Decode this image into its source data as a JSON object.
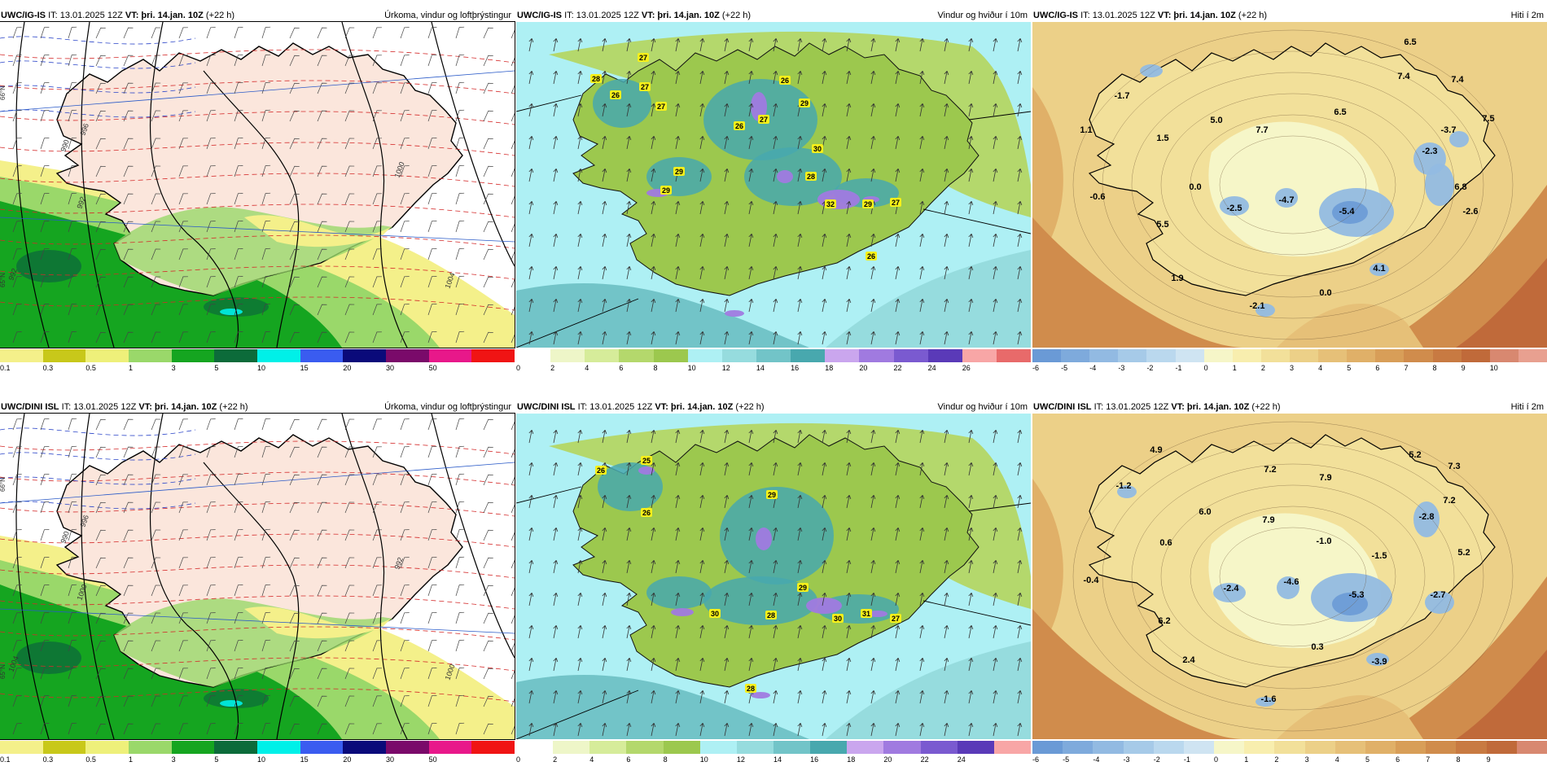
{
  "rows": [
    {
      "model": "UWC/IG-IS",
      "panels": [
        {
          "kind": "precip",
          "model": "UWC/IG-IS",
          "it_label": "IT: 13.01.2025 12Z",
          "vt_prefix": "VT:",
          "vt_value": "þri. 14.jan. 10Z",
          "offset": "(+22 h)",
          "title": "Úrkoma, vindur og loftþrýstingur",
          "colorbar_ticks": [
            "0.1",
            "0.3",
            "0.5",
            "1",
            "3",
            "5",
            "10",
            "15",
            "20",
            "30",
            "50"
          ],
          "colorbar_colors": [
            "#f4f08a",
            "#c8c81a",
            "#eef07a",
            "#9ad86a",
            "#15a520",
            "#0c6b3a",
            "#00f0e8",
            "#3a5cf0",
            "#0a0a7a",
            "#7a0a6a",
            "#e8188a",
            "#f01414"
          ],
          "isobar_labels": [
            "992",
            "996",
            "1000",
            "1004",
            "992",
            "990"
          ],
          "lat_labels": [
            "66°N",
            "65°N"
          ]
        },
        {
          "kind": "wind",
          "model": "UWC/IG-IS",
          "it_label": "IT: 13.01.2025 12Z",
          "vt_prefix": "VT:",
          "vt_value": "þri. 14.jan. 10Z",
          "offset": "(+22 h)",
          "title": "Vindur og hviður í 10m",
          "colorbar_ticks": [
            "0",
            "2",
            "4",
            "6",
            "8",
            "10",
            "12",
            "14",
            "16",
            "18",
            "20",
            "22",
            "24",
            "26"
          ],
          "colorbar_colors": [
            "#ffffff",
            "#eef6c8",
            "#d6ec9a",
            "#b4d86c",
            "#9cc84e",
            "#aef0f4",
            "#96dcde",
            "#72c4c8",
            "#48a8ae",
            "#caa6ee",
            "#a07ae0",
            "#7a5ad0",
            "#5a3ab8",
            "#f8a6a6",
            "#e86a6a"
          ],
          "gusts": [
            "28",
            "27",
            "27",
            "26",
            "27",
            "29",
            "26",
            "27",
            "29",
            "26",
            "30",
            "28",
            "32",
            "29",
            "29",
            "27",
            "26"
          ]
        },
        {
          "kind": "temp",
          "model": "UWC/IG-IS",
          "it_label": "IT: 13.01.2025 12Z",
          "vt_prefix": "VT:",
          "vt_value": "þri. 14.jan. 10Z",
          "offset": "(+22 h)",
          "title": "Hiti í 2m",
          "colorbar_ticks": [
            "-6",
            "-5",
            "-4",
            "-3",
            "-2",
            "-1",
            "0",
            "1",
            "2",
            "3",
            "4",
            "5",
            "6",
            "7",
            "8",
            "9",
            "10"
          ],
          "colorbar_colors": [
            "#6a9ad6",
            "#7eaadc",
            "#92bae2",
            "#a6cae8",
            "#bad8ee",
            "#cfe4f2",
            "#f6f6c8",
            "#f8eeae",
            "#f2e09a",
            "#ecd088",
            "#e6c078",
            "#e0b068",
            "#d89e58",
            "#d08c4c",
            "#c87a42",
            "#c06a3a",
            "#d88870",
            "#e8a090"
          ],
          "temps": [
            "6.5",
            "7.4",
            "7.4",
            "-1.7",
            "6.5",
            "7.5",
            "1.1",
            "5.0",
            "7.7",
            "-3.7",
            "1.5",
            "-2.3",
            "0.0",
            "6.8",
            "-0.6",
            "-4.7",
            "-2.5",
            "-5.4",
            "-2.6",
            "5.5",
            "4.1",
            "1.9",
            "0.0",
            "-2.1"
          ]
        }
      ]
    },
    {
      "model": "UWC/DINI ISL",
      "panels": [
        {
          "kind": "precip",
          "model": "UWC/DINI ISL",
          "it_label": "IT: 13.01.2025 12Z",
          "vt_prefix": "VT:",
          "vt_value": "þri. 14.jan. 10Z",
          "offset": "(+22 h)",
          "title": "Úrkoma, vindur og loftþrýstingur",
          "colorbar_ticks": [
            "0.1",
            "0.3",
            "0.5",
            "1",
            "3",
            "5",
            "10",
            "15",
            "20",
            "30",
            "50"
          ],
          "colorbar_colors": [
            "#f4f08a",
            "#c8c81a",
            "#eef07a",
            "#9ad86a",
            "#15a520",
            "#0c6b3a",
            "#00f0e8",
            "#3a5cf0",
            "#0a0a7a",
            "#7a0a6a",
            "#e8188a",
            "#f01414"
          ],
          "isobar_labels": [
            "1000",
            "996",
            "992",
            "1000",
            "1004",
            "990"
          ],
          "lat_labels": [
            "66°N",
            "65°N"
          ]
        },
        {
          "kind": "wind",
          "model": "UWC/DINI ISL",
          "it_label": "IT: 13.01.2025 12Z",
          "vt_prefix": "VT:",
          "vt_value": "þri. 14.jan. 10Z",
          "offset": "(+22 h)",
          "title": "Vindur og hviður í 10m",
          "colorbar_ticks": [
            "0",
            "2",
            "4",
            "6",
            "8",
            "10",
            "12",
            "14",
            "16",
            "18",
            "20",
            "22",
            "24"
          ],
          "colorbar_colors": [
            "#ffffff",
            "#eef6c8",
            "#d6ec9a",
            "#b4d86c",
            "#9cc84e",
            "#aef0f4",
            "#96dcde",
            "#72c4c8",
            "#48a8ae",
            "#caa6ee",
            "#a07ae0",
            "#7a5ad0",
            "#5a3ab8",
            "#f8a6a6"
          ],
          "gusts": [
            "26",
            "25",
            "26",
            "29",
            "29",
            "30",
            "28",
            "30",
            "31",
            "27",
            "28"
          ]
        },
        {
          "kind": "temp",
          "model": "UWC/DINI ISL",
          "it_label": "IT: 13.01.2025 12Z",
          "vt_prefix": "VT:",
          "vt_value": "þri. 14.jan. 10Z",
          "offset": "(+22 h)",
          "title": "Hiti í 2m",
          "colorbar_ticks": [
            "-6",
            "-5",
            "-4",
            "-3",
            "-2",
            "-1",
            "0",
            "1",
            "2",
            "3",
            "4",
            "5",
            "6",
            "7",
            "8",
            "9"
          ],
          "colorbar_colors": [
            "#6a9ad6",
            "#7eaadc",
            "#92bae2",
            "#a6cae8",
            "#bad8ee",
            "#cfe4f2",
            "#f6f6c8",
            "#f8eeae",
            "#f2e09a",
            "#ecd088",
            "#e6c078",
            "#e0b068",
            "#d89e58",
            "#d08c4c",
            "#c87a42",
            "#c06a3a",
            "#d88870"
          ],
          "temps": [
            "4.9",
            "5.2",
            "7.2",
            "7.3",
            "-1.2",
            "7.9",
            "7.2",
            "6.0",
            "7.9",
            "-2.8",
            "0.6",
            "-1.0",
            "5.2",
            "-1.5",
            "-0.4",
            "-2.4",
            "-4.6",
            "-5.3",
            "-2.7",
            "6.2",
            "0.3",
            "2.4",
            "-3.9",
            "-1.6"
          ]
        }
      ]
    }
  ]
}
